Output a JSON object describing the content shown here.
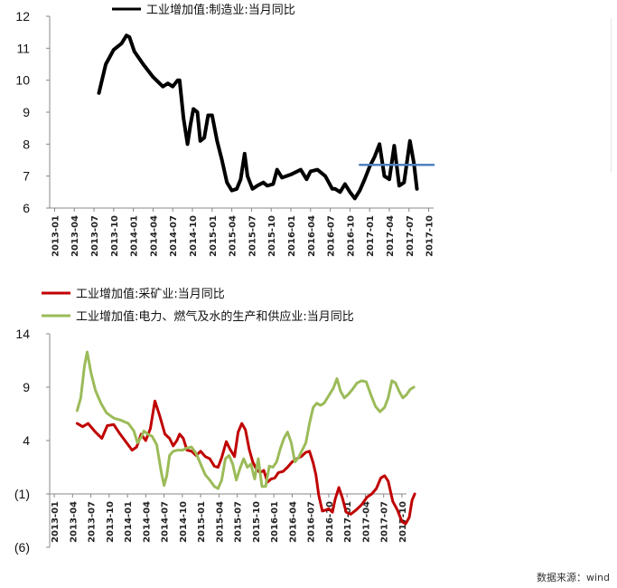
{
  "source_text": "数据来源：wind",
  "chart_data": [
    {
      "type": "line",
      "title": "",
      "xlabel": "",
      "ylabel": "",
      "ylim": [
        6,
        12
      ],
      "yticks": [
        "12",
        "11",
        "10",
        "9",
        "8",
        "7",
        "6"
      ],
      "grid": false,
      "legend": "top",
      "x_ticks": [
        "2013-01",
        "2013-04",
        "2013-07",
        "2013-10",
        "2014-01",
        "2014-04",
        "2014-07",
        "2014-10",
        "2015-01",
        "2015-04",
        "2015-07",
        "2015-10",
        "2016-01",
        "2016-04",
        "2016-07",
        "2016-10",
        "2017-01",
        "2017-04",
        "2017-07",
        "2017-10"
      ],
      "series": [
        {
          "name": "工业增加值:制造业:当月同比",
          "color": "#000000",
          "points": [
            [
              5.0,
              9.6
            ],
            [
              5.7,
              10.5
            ],
            [
              6.5,
              10.95
            ],
            [
              7.3,
              11.15
            ],
            [
              7.8,
              11.4
            ],
            [
              8.1,
              11.35
            ],
            [
              8.6,
              10.9
            ],
            [
              9.5,
              10.5
            ],
            [
              10.5,
              10.1
            ],
            [
              11.5,
              9.8
            ],
            [
              12.0,
              9.9
            ],
            [
              12.5,
              9.8
            ],
            [
              13.0,
              10.0
            ],
            [
              13.2,
              10.0
            ],
            [
              13.6,
              8.8
            ],
            [
              14.0,
              8.0
            ],
            [
              14.3,
              8.6
            ],
            [
              14.6,
              9.1
            ],
            [
              15.0,
              9.0
            ],
            [
              15.3,
              8.1
            ],
            [
              15.7,
              8.2
            ],
            [
              16.1,
              8.9
            ],
            [
              16.5,
              8.9
            ],
            [
              17.0,
              8.1
            ],
            [
              17.5,
              7.5
            ],
            [
              18.0,
              6.8
            ],
            [
              18.5,
              6.55
            ],
            [
              19.0,
              6.6
            ],
            [
              19.4,
              6.9
            ],
            [
              19.8,
              7.7
            ],
            [
              20.1,
              7.0
            ],
            [
              20.6,
              6.6
            ],
            [
              21.1,
              6.7
            ],
            [
              21.7,
              6.8
            ],
            [
              22.1,
              6.7
            ],
            [
              22.7,
              6.75
            ],
            [
              23.1,
              7.2
            ],
            [
              23.6,
              6.95
            ],
            [
              24.5,
              7.05
            ],
            [
              25.5,
              7.2
            ],
            [
              26.1,
              6.9
            ],
            [
              26.5,
              7.15
            ],
            [
              27.2,
              7.2
            ],
            [
              28.0,
              7.0
            ],
            [
              28.7,
              6.6
            ],
            [
              29.0,
              6.6
            ],
            [
              29.5,
              6.5
            ],
            [
              30.0,
              6.75
            ],
            [
              30.5,
              6.5
            ],
            [
              31.0,
              6.3
            ],
            [
              31.5,
              6.55
            ],
            [
              32.0,
              6.9
            ],
            [
              32.5,
              7.3
            ],
            [
              33.0,
              7.6
            ],
            [
              33.5,
              8.0
            ],
            [
              34.0,
              7.0
            ],
            [
              34.5,
              6.9
            ],
            [
              35.0,
              7.95
            ],
            [
              35.5,
              6.7
            ],
            [
              36.0,
              6.8
            ],
            [
              36.6,
              8.1
            ],
            [
              37.0,
              7.4
            ],
            [
              37.3,
              6.6
            ]
          ]
        },
        {
          "name": "",
          "color": "#4f81bd",
          "points": [
            [
              31.5,
              7.35
            ],
            [
              39.0,
              7.35
            ]
          ]
        }
      ]
    },
    {
      "type": "line",
      "title": "",
      "xlabel": "",
      "ylabel": "",
      "ylim": [
        -6,
        14
      ],
      "yticks": [
        "14",
        "9",
        "4",
        "(1)",
        "(6)"
      ],
      "grid": false,
      "legend": "top-left",
      "x_ticks": [
        "2013-01",
        "2013-04",
        "2013-07",
        "2013-10",
        "2014-01",
        "2014-04",
        "2014-07",
        "2014-10",
        "2015-01",
        "2015-04",
        "2015-07",
        "2015-10",
        "2016-01",
        "2016-04",
        "2016-07",
        "2016-10",
        "2017-01",
        "2017-04",
        "2017-07",
        "2017-10"
      ],
      "series": [
        {
          "name": "工业增加值:采矿业:当月同比",
          "color": "#c00000",
          "points": [
            [
              3.0,
              5.6
            ],
            [
              3.6,
              5.3
            ],
            [
              4.2,
              5.6
            ],
            [
              5.0,
              4.8
            ],
            [
              5.7,
              4.2
            ],
            [
              6.3,
              5.4
            ],
            [
              7.0,
              5.5
            ],
            [
              7.7,
              4.6
            ],
            [
              8.4,
              3.8
            ],
            [
              9.0,
              3.1
            ],
            [
              9.5,
              3.4
            ],
            [
              10.0,
              4.6
            ],
            [
              10.5,
              4.0
            ],
            [
              11.0,
              5.1
            ],
            [
              11.5,
              7.7
            ],
            [
              12.0,
              6.4
            ],
            [
              12.6,
              4.6
            ],
            [
              13.1,
              4.2
            ],
            [
              13.5,
              3.5
            ],
            [
              13.9,
              4.0
            ],
            [
              14.2,
              4.6
            ],
            [
              14.6,
              4.2
            ],
            [
              15.0,
              3.1
            ],
            [
              15.5,
              3.0
            ],
            [
              16.0,
              2.6
            ],
            [
              16.5,
              3.0
            ],
            [
              17.0,
              2.5
            ],
            [
              17.5,
              2.3
            ],
            [
              18.0,
              1.6
            ],
            [
              18.4,
              1.5
            ],
            [
              18.8,
              2.4
            ],
            [
              19.3,
              3.9
            ],
            [
              19.7,
              3.2
            ],
            [
              20.2,
              2.5
            ],
            [
              20.6,
              4.8
            ],
            [
              21.0,
              5.6
            ],
            [
              21.4,
              5.0
            ],
            [
              21.8,
              3.2
            ],
            [
              22.2,
              2.0
            ],
            [
              22.6,
              1.3
            ],
            [
              23.0,
              1.0
            ],
            [
              23.4,
              1.2
            ],
            [
              23.8,
              0.1
            ],
            [
              24.2,
              0.4
            ],
            [
              24.6,
              0.5
            ],
            [
              25.0,
              1.0
            ],
            [
              25.5,
              1.1
            ],
            [
              26.0,
              1.5
            ],
            [
              26.5,
              2.0
            ],
            [
              27.0,
              2.3
            ],
            [
              27.5,
              2.5
            ],
            [
              28.0,
              2.9
            ],
            [
              28.4,
              3.0
            ],
            [
              28.8,
              1.9
            ],
            [
              29.1,
              0.8
            ],
            [
              29.4,
              -1.1
            ],
            [
              29.8,
              -2.6
            ],
            [
              30.2,
              -2.5
            ],
            [
              30.5,
              -2.4
            ],
            [
              30.9,
              -2.7
            ],
            [
              31.2,
              -1.5
            ],
            [
              31.6,
              -0.4
            ],
            [
              32.0,
              -1.4
            ],
            [
              32.4,
              -2.7
            ],
            [
              32.9,
              -2.9
            ],
            [
              33.5,
              -2.5
            ],
            [
              34.1,
              -2.0
            ],
            [
              34.7,
              -1.3
            ],
            [
              35.2,
              -1.0
            ],
            [
              35.7,
              -0.5
            ],
            [
              36.2,
              0.5
            ],
            [
              36.6,
              0.7
            ],
            [
              37.0,
              0.2
            ],
            [
              37.5,
              -1.7
            ],
            [
              38.0,
              -2.5
            ],
            [
              38.5,
              -3.6
            ],
            [
              38.9,
              -3.8
            ],
            [
              39.3,
              -3.2
            ],
            [
              39.6,
              -1.6
            ],
            [
              39.9,
              -1.0
            ]
          ]
        },
        {
          "name": "工业增加值:电力、燃气及水的生产和供应业:当月同比",
          "color": "#9bbb59",
          "points": [
            [
              3.0,
              6.8
            ],
            [
              3.4,
              8.0
            ],
            [
              3.8,
              11.0
            ],
            [
              4.1,
              12.3
            ],
            [
              4.5,
              10.4
            ],
            [
              5.0,
              8.7
            ],
            [
              5.6,
              7.5
            ],
            [
              6.2,
              6.6
            ],
            [
              7.0,
              6.1
            ],
            [
              7.8,
              5.9
            ],
            [
              8.6,
              5.6
            ],
            [
              9.2,
              4.9
            ],
            [
              9.6,
              3.8
            ],
            [
              10.0,
              4.3
            ],
            [
              10.3,
              4.9
            ],
            [
              10.7,
              4.6
            ],
            [
              11.2,
              4.4
            ],
            [
              11.7,
              3.6
            ],
            [
              12.2,
              1.0
            ],
            [
              12.5,
              -0.2
            ],
            [
              12.8,
              0.7
            ],
            [
              13.1,
              2.6
            ],
            [
              13.5,
              3.0
            ],
            [
              14.0,
              3.1
            ],
            [
              14.5,
              3.1
            ],
            [
              15.0,
              3.3
            ],
            [
              15.5,
              3.4
            ],
            [
              16.0,
              2.8
            ],
            [
              16.5,
              1.8
            ],
            [
              17.0,
              0.8
            ],
            [
              17.5,
              0.3
            ],
            [
              18.0,
              -0.3
            ],
            [
              18.4,
              -0.5
            ],
            [
              18.8,
              0.3
            ],
            [
              19.2,
              2.3
            ],
            [
              19.6,
              2.6
            ],
            [
              20.0,
              1.8
            ],
            [
              20.4,
              0.3
            ],
            [
              20.8,
              1.4
            ],
            [
              21.2,
              2.3
            ],
            [
              21.6,
              1.5
            ],
            [
              22.0,
              1.8
            ],
            [
              22.4,
              0.4
            ],
            [
              22.8,
              2.3
            ],
            [
              23.2,
              -0.3
            ],
            [
              23.6,
              -0.3
            ],
            [
              24.0,
              1.6
            ],
            [
              24.4,
              1.5
            ],
            [
              24.8,
              2.0
            ],
            [
              25.2,
              3.2
            ],
            [
              25.6,
              4.2
            ],
            [
              26.0,
              4.8
            ],
            [
              26.4,
              3.8
            ],
            [
              26.8,
              2.0
            ],
            [
              27.2,
              2.4
            ],
            [
              27.6,
              3.1
            ],
            [
              28.0,
              3.8
            ],
            [
              28.4,
              5.6
            ],
            [
              28.8,
              7.1
            ],
            [
              29.2,
              7.5
            ],
            [
              29.6,
              7.3
            ],
            [
              30.0,
              7.5
            ],
            [
              30.5,
              8.2
            ],
            [
              31.0,
              8.9
            ],
            [
              31.4,
              9.8
            ],
            [
              31.8,
              8.6
            ],
            [
              32.2,
              8.0
            ],
            [
              32.6,
              8.3
            ],
            [
              33.1,
              8.8
            ],
            [
              33.6,
              9.4
            ],
            [
              34.1,
              9.6
            ],
            [
              34.6,
              9.5
            ],
            [
              35.1,
              8.3
            ],
            [
              35.6,
              7.2
            ],
            [
              36.1,
              6.7
            ],
            [
              36.6,
              7.1
            ],
            [
              37.0,
              8.0
            ],
            [
              37.4,
              9.6
            ],
            [
              37.8,
              9.4
            ],
            [
              38.2,
              8.6
            ],
            [
              38.6,
              8.0
            ],
            [
              39.0,
              8.3
            ],
            [
              39.4,
              8.8
            ],
            [
              39.8,
              9.0
            ]
          ]
        }
      ]
    }
  ]
}
